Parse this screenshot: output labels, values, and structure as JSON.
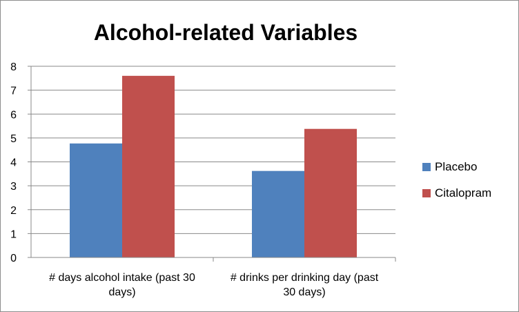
{
  "chart_data": {
    "type": "bar",
    "title": "Alcohol-related Variables",
    "categories": [
      "# days alcohol intake (past 30 days)",
      "# drinks per drinking day (past 30 days)"
    ],
    "category_lines": [
      [
        "# days alcohol intake (past 30",
        "days)"
      ],
      [
        "# drinks per drinking day (past",
        "30 days)"
      ]
    ],
    "series": [
      {
        "name": "Placebo",
        "color": "#4f81bd",
        "values": [
          4.77,
          3.62
        ]
      },
      {
        "name": "Citalopram",
        "color": "#c0504d",
        "values": [
          7.6,
          5.38
        ]
      }
    ],
    "ylim": [
      0,
      8
    ],
    "yticks": [
      "0",
      "1",
      "2",
      "3",
      "4",
      "5",
      "6",
      "7",
      "8"
    ],
    "grid": true,
    "legend_position": "right"
  }
}
